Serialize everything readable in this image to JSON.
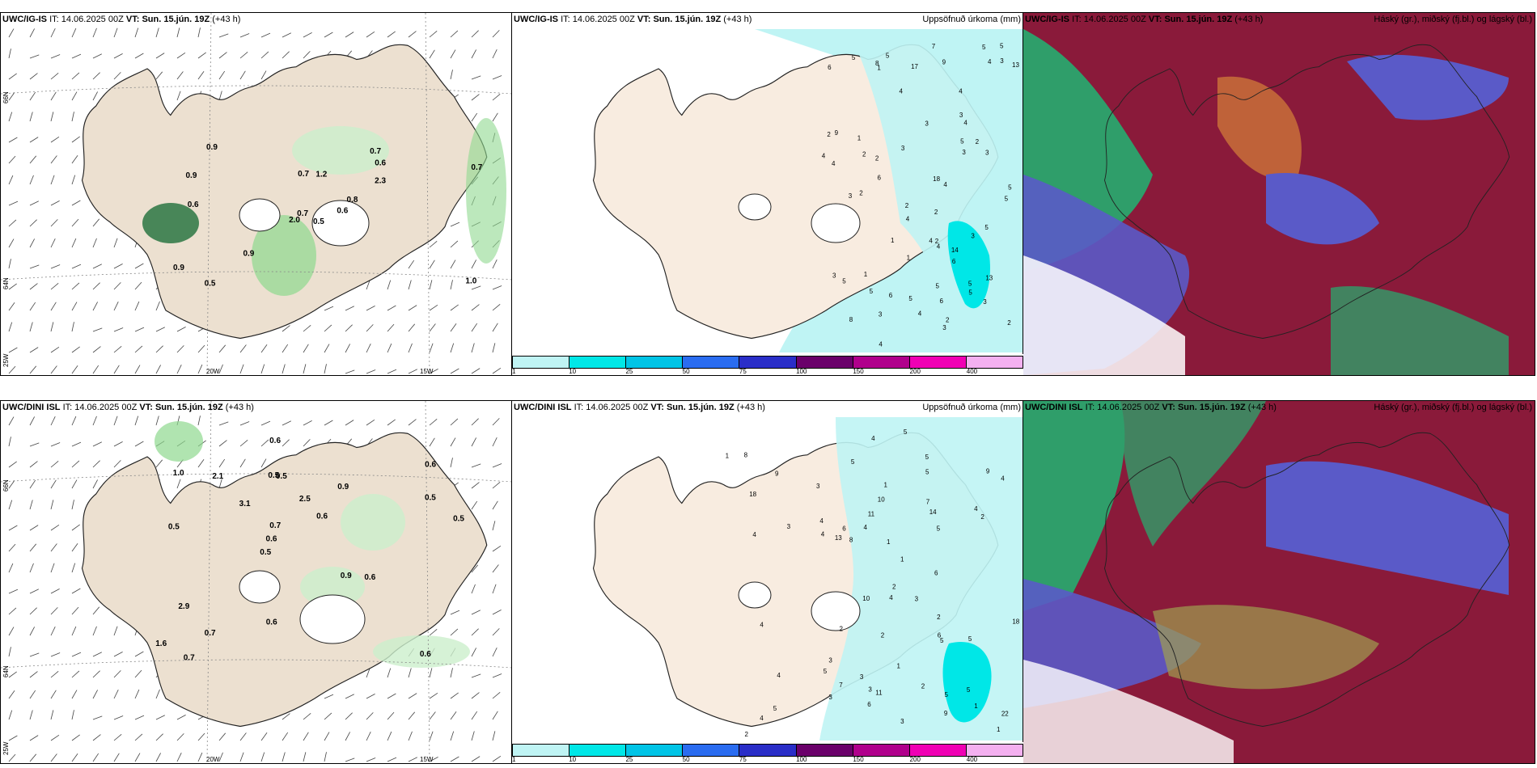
{
  "colors": {
    "land": "#ece0d0",
    "precip_light": "#bff4f4",
    "precip_cyan": "#00e7e7",
    "wind_green_light": "#ccefcc",
    "wind_green": "#8fd98f",
    "wind_green_dark": "#1f6f3a",
    "cloud_high": "#2f9e6a",
    "cloud_mid": "#5a5ac8",
    "cloud_low": "#8a1a3a",
    "cloud_orange": "#c8703a"
  },
  "colorbar": {
    "colors": [
      "#bff4f4",
      "#00e7e7",
      "#00c4e6",
      "#2a6cf0",
      "#2a2ec8",
      "#6a006a",
      "#b0008c",
      "#f000b4",
      "#f4b0f0"
    ],
    "ticks": [
      "1",
      "10",
      "25",
      "50",
      "75",
      "100",
      "150",
      "200",
      "400"
    ]
  },
  "axes": {
    "lon_20w": "20W",
    "lon_15w": "15W",
    "lat_66n": "66N",
    "lat_64n": "64N",
    "lon_25w": "25W"
  },
  "panels": {
    "top_left": {
      "model": "UWC/IG-IS",
      "it_prefix": "IT:",
      "it_value": "14.06.2025 00Z",
      "vt_prefix": "VT:",
      "vt_value": "Sun. 15.jún. 19Z",
      "lead": "(+43 h)",
      "labels": [
        "0.5",
        "0.9",
        "0.7",
        "0.9",
        "0.8",
        "0.9",
        "0.7",
        "1.2",
        "0.6",
        "0.6",
        "0.9",
        "1.0",
        "0.6",
        "0.7",
        "2.0",
        "2.3",
        "0.5",
        "0.7"
      ]
    },
    "top_mid": {
      "model": "UWC/IG-IS",
      "it_prefix": "IT:",
      "it_value": "14.06.2025 00Z",
      "vt_prefix": "VT:",
      "vt_value": "Sun. 15.jún. 19Z",
      "lead": "(+43 h)",
      "right_title": "Uppsöfnuð úrkoma (mm)",
      "labels": [
        "2",
        "1",
        "1",
        "1",
        "2",
        "6",
        "5",
        "6",
        "4",
        "5",
        "5",
        "2",
        "2",
        "2",
        "3",
        "5",
        "4",
        "4",
        "3",
        "3",
        "5",
        "4",
        "3",
        "5",
        "4",
        "4",
        "2",
        "2",
        "4",
        "4",
        "6",
        "5",
        "4",
        "6",
        "5",
        "5",
        "7",
        "9",
        "5",
        "14",
        "17",
        "18",
        "13",
        "13",
        "9",
        "5",
        "4",
        "1",
        "2",
        "3",
        "1",
        "3",
        "2",
        "3",
        "6",
        "2",
        "3",
        "3",
        "4",
        "3",
        "4",
        "3",
        "5",
        "3",
        "8",
        "8",
        "5",
        "5"
      ]
    },
    "top_right": {
      "model": "UWC/IG-IS",
      "it_prefix": "IT:",
      "it_value": "14.06.2025 00Z",
      "vt_prefix": "VT:",
      "vt_value": "Sun. 15.jún. 19Z",
      "lead": "(+43 h)",
      "right_title": "Háský (gr.), miðský (fj.bl.) og lágský (bl.)"
    },
    "bottom_left": {
      "model": "UWC/DINI ISL",
      "it_prefix": "IT:",
      "it_value": "14.06.2025 00Z",
      "vt_prefix": "VT:",
      "vt_value": "Sun. 15.jún. 19Z",
      "lead": "(+43 h)",
      "labels": [
        "0.6",
        "0.5",
        "0.6",
        "0.5",
        "0.9",
        "0.7",
        "0.5",
        "2.5",
        "2.9",
        "3.1",
        "1.6",
        "0.7",
        "0.5",
        "0.6",
        "0.6",
        "1.0",
        "0.6",
        "0.5",
        "0.9",
        "0.5",
        "0.6",
        "0.6",
        "0.7",
        "2.1"
      ]
    },
    "bottom_mid": {
      "model": "UWC/DINI ISL",
      "it_prefix": "IT:",
      "it_value": "14.06.2025 00Z",
      "vt_prefix": "VT:",
      "vt_value": "Sun. 15.jún. 19Z",
      "lead": "(+43 h)",
      "right_title": "Uppsöfnuð úrkoma (mm)",
      "labels": [
        "4",
        "5",
        "2",
        "2",
        "5",
        "5",
        "5",
        "5",
        "5",
        "5",
        "1",
        "4",
        "7",
        "4",
        "2",
        "4",
        "6",
        "4",
        "10",
        "4",
        "1",
        "5",
        "6",
        "3",
        "5",
        "5",
        "6",
        "10",
        "2",
        "1",
        "1",
        "2",
        "1",
        "2",
        "4",
        "3",
        "3",
        "5",
        "4",
        "3",
        "3",
        "3",
        "3",
        "3",
        "6",
        "13",
        "11",
        "11",
        "18",
        "22",
        "18",
        "4",
        "8",
        "9",
        "4",
        "9",
        "4",
        "8",
        "1",
        "2",
        "1",
        "7",
        "14",
        "9"
      ]
    },
    "bottom_right": {
      "model": "UWC/DINI ISL",
      "it_prefix": "IT:",
      "it_value": "14.06.2025 00Z",
      "vt_prefix": "VT:",
      "vt_value": "Sun. 15.jún. 19Z",
      "lead": "(+43 h)",
      "right_title": "Háský (gr.), miðský (fj.bl.) og lágský (bl.)"
    }
  }
}
